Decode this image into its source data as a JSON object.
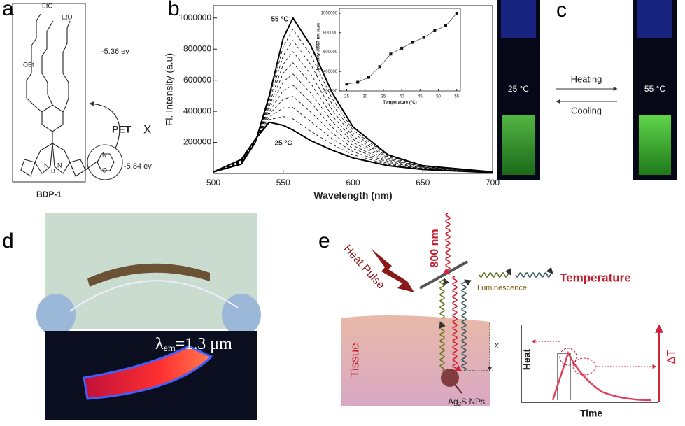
{
  "panel_labels": [
    "a",
    "b",
    "c",
    "d",
    "e"
  ],
  "panel_a": {
    "groups": [
      "OEt",
      "EtO",
      "EtO"
    ],
    "atoms": [
      "N",
      "B",
      "N",
      "N",
      "O"
    ],
    "energy_high": "-5.36 ev",
    "energy_low": "-5.84 ev",
    "pet": "PET",
    "blocked": "X",
    "molecule": "BDP-1"
  },
  "panel_c": {
    "left_temp": "25 °C",
    "right_temp": "55 °C",
    "forward": "Heating",
    "reverse": "Cooling"
  },
  "panel_d": {
    "symbol": "λ",
    "subscript": "em",
    "value": "=1.3 μm"
  },
  "panel_e": {
    "pulse": "Heat Pulse",
    "excitation": "800 nm",
    "luminescence": "Luminescence",
    "output": "Temperature",
    "tissue": "Tissue",
    "depth": "x",
    "particles": "Ag",
    "particles_sub": "2",
    "particles_rest": "S NPs",
    "heat_axis": "Heat",
    "time_axis": "Time",
    "delta": "ΔT"
  },
  "chart_data": [
    {
      "type": "line",
      "xlabel": "Wavelength (nm)",
      "ylabel": "Fl. Intensity (a.u)",
      "annotations": [
        "55 °C",
        "25 °C"
      ],
      "x": [
        500,
        520,
        530,
        540,
        550,
        557,
        570,
        585,
        600,
        625,
        650,
        700
      ],
      "xlim": [
        500,
        700
      ],
      "xticks": [
        500,
        550,
        600,
        650,
        700
      ],
      "ylim": [
        0,
        1080000
      ],
      "yticks": [
        200000,
        400000,
        600000,
        800000,
        1000000
      ],
      "series": [
        {
          "color": "#000000",
          "style": "solid",
          "values": [
            10000,
            90000,
            220000,
            330000,
            310000,
            280000,
            210000,
            150000,
            100000,
            50000,
            25000,
            5000
          ]
        },
        {
          "color": "#000000",
          "style": "dashed",
          "values": [
            10000,
            87000,
            218000,
            347000,
            366000,
            352000,
            271000,
            187000,
            120000,
            57000,
            27500,
            5500
          ]
        },
        {
          "color": "#000000",
          "style": "dashed",
          "values": [
            10000,
            84000,
            216000,
            364000,
            422000,
            424000,
            332000,
            224000,
            140000,
            64000,
            30000,
            6000
          ]
        },
        {
          "color": "#000000",
          "style": "dashed",
          "values": [
            10000,
            81000,
            214000,
            381000,
            478000,
            496000,
            393000,
            261000,
            160000,
            71000,
            32500,
            6500
          ]
        },
        {
          "color": "#000000",
          "style": "dashed",
          "values": [
            10000,
            78000,
            212000,
            398000,
            534000,
            568000,
            454000,
            298000,
            180000,
            78000,
            35000,
            7000
          ]
        },
        {
          "color": "#000000",
          "style": "dashed",
          "values": [
            10000,
            75000,
            210000,
            415000,
            590000,
            640000,
            515000,
            335000,
            200000,
            85000,
            37500,
            7500
          ]
        },
        {
          "color": "#000000",
          "style": "dashed",
          "values": [
            10000,
            72000,
            208000,
            432000,
            646000,
            712000,
            576000,
            372000,
            220000,
            92000,
            40000,
            8000
          ]
        },
        {
          "color": "#000000",
          "style": "dashed",
          "values": [
            10000,
            69000,
            206000,
            449000,
            702000,
            784000,
            637000,
            409000,
            240000,
            99000,
            42500,
            8500
          ]
        },
        {
          "color": "#000000",
          "style": "dashed",
          "values": [
            10000,
            66000,
            204000,
            466000,
            758000,
            856000,
            698000,
            446000,
            260000,
            106000,
            45000,
            9000
          ]
        },
        {
          "color": "#000000",
          "style": "dashed",
          "values": [
            10000,
            63000,
            202000,
            483000,
            814000,
            928000,
            759000,
            483000,
            280000,
            113000,
            47500,
            9500
          ]
        },
        {
          "color": "#000000",
          "style": "solid",
          "values": [
            10000,
            60000,
            200000,
            500000,
            870000,
            1000000,
            820000,
            520000,
            300000,
            120000,
            50000,
            10000
          ]
        }
      ]
    },
    {
      "type": "line",
      "xlabel": "Temperature (°C)",
      "ylabel": "Fl. Intensity @557 nm (a.u)",
      "x": [
        25,
        28,
        31,
        34,
        37,
        40,
        43,
        46,
        49,
        52,
        55
      ],
      "xlim": [
        23,
        56
      ],
      "xticks": [
        25,
        30,
        35,
        40,
        45,
        50,
        55
      ],
      "ylim": [
        200000,
        1050000
      ],
      "yticks": [
        200000,
        400000,
        600000,
        800000,
        1000000
      ],
      "series": [
        {
          "color": "#555555",
          "style": "solid",
          "marker": "square",
          "values": [
            270000,
            290000,
            340000,
            450000,
            580000,
            640000,
            700000,
            750000,
            820000,
            870000,
            1000000
          ]
        }
      ]
    }
  ]
}
